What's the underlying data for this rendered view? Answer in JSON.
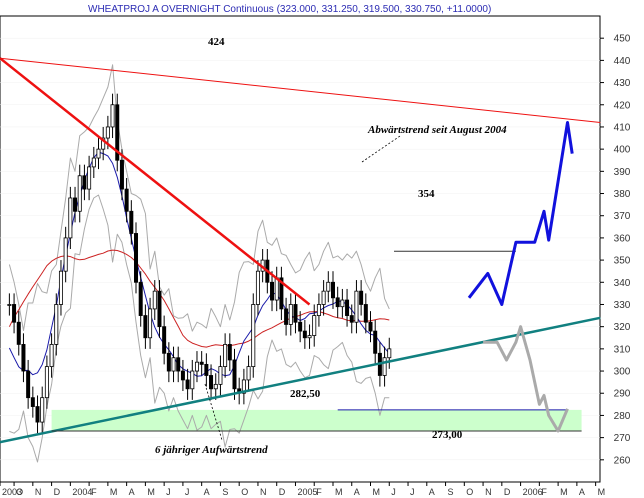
{
  "chart_data": {
    "type": "candlestick",
    "title": "WHEATPROJ A OVERNIGHT Continuous (323.000, 331.250, 319.500, 330.750, +11.0000)",
    "ylim": [
      250,
      460
    ],
    "yticks": [
      260,
      270,
      280,
      290,
      300,
      310,
      320,
      330,
      340,
      350,
      360,
      370,
      380,
      390,
      400,
      410,
      420,
      430,
      440,
      450
    ],
    "x_labels": [
      "2003",
      "O",
      "N",
      "D",
      "2004",
      "F",
      "M",
      "A",
      "M",
      "J",
      "J",
      "A",
      "S",
      "O",
      "N",
      "D",
      "2005",
      "F",
      "M",
      "A",
      "M",
      "J",
      "J",
      "A",
      "S",
      "O",
      "N",
      "D",
      "2006",
      "F",
      "M",
      "A",
      "M"
    ],
    "x_label_weeks": [
      0,
      3,
      7,
      11,
      15,
      19,
      23,
      27,
      31,
      35,
      39,
      43,
      47,
      51,
      55,
      59,
      63,
      67,
      71,
      75,
      79,
      83,
      87,
      91,
      95,
      99,
      103,
      107,
      111,
      115,
      119,
      123,
      127
    ],
    "colors": {
      "price": "#000000",
      "ma_long": "#cc2222",
      "ma_short": "#1a1aaa",
      "bands": "#aaaaaa",
      "resistance": "#ee1111",
      "support": "#118080",
      "forecast_up": "#1111dd",
      "forecast_down": "#aaaaaa",
      "zone": "#ccffcc",
      "level_lines": "#1a1aaa"
    },
    "annotations": {
      "high_2004": "424",
      "high_2005": "354",
      "low_2005": "282,50",
      "low_target": "273,00",
      "downtrend_label": "Abwärtstrend seit August 2004",
      "uptrend_label": "6 jähriger Aufwärtstrend"
    },
    "price_series": [
      330,
      322,
      312,
      300,
      288,
      284,
      277,
      288,
      302,
      312,
      330,
      345,
      360,
      378,
      372,
      388,
      382,
      392,
      396,
      400,
      405,
      410,
      420,
      395,
      382,
      372,
      362,
      340,
      325,
      315,
      328,
      336,
      320,
      308,
      300,
      306,
      300,
      296,
      292,
      300,
      304,
      303,
      298,
      292,
      294,
      302,
      312,
      305,
      292,
      290,
      296,
      302,
      330,
      345,
      350,
      340,
      332,
      342,
      328,
      321,
      330,
      322,
      318,
      315,
      316,
      325,
      330,
      336,
      340,
      333,
      329,
      332,
      325,
      322,
      336,
      330,
      322,
      318,
      308,
      298,
      306,
      310
    ],
    "resistance_line": [
      [
        0,
        441
      ],
      [
        66,
        330
      ]
    ],
    "resistance_upper": [
      [
        0,
        441
      ],
      [
        128,
        412
      ]
    ],
    "support_line": [
      [
        0,
        268
      ],
      [
        128,
        324
      ]
    ],
    "level_354": 354,
    "level_282_5": 282.5,
    "level_273": 273,
    "zone": [
      273,
      282.5
    ],
    "forecast_up": [
      [
        100,
        333
      ],
      [
        104,
        344
      ],
      [
        107,
        330
      ],
      [
        110,
        358
      ],
      [
        114,
        358
      ],
      [
        116,
        372
      ],
      [
        117,
        359
      ],
      [
        121,
        412
      ],
      [
        122,
        398
      ]
    ],
    "forecast_down": [
      [
        103,
        313
      ],
      [
        106,
        313
      ],
      [
        108,
        305
      ],
      [
        110,
        313
      ],
      [
        111,
        320
      ],
      [
        113,
        305
      ],
      [
        115,
        285
      ],
      [
        116,
        289
      ],
      [
        117,
        280
      ],
      [
        119,
        273
      ],
      [
        121,
        283
      ]
    ]
  }
}
